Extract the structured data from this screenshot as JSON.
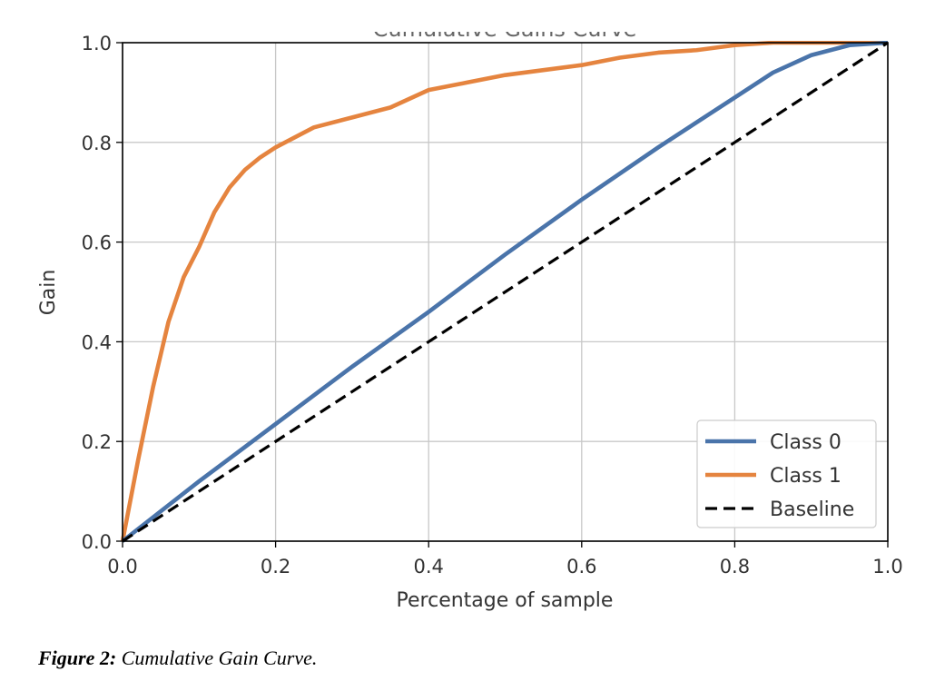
{
  "chart_data": {
    "type": "line",
    "title": "Cumulative Gains Curve",
    "xlabel": "Percentage of sample",
    "ylabel": "Gain",
    "xlim": [
      0.0,
      1.0
    ],
    "ylim": [
      0.0,
      1.0
    ],
    "xticks": [
      "0.0",
      "0.2",
      "0.4",
      "0.6",
      "0.8",
      "1.0"
    ],
    "yticks": [
      "0.0",
      "0.2",
      "0.4",
      "0.6",
      "0.8",
      "1.0"
    ],
    "grid": true,
    "legend_position": "lower-right",
    "series": [
      {
        "name": "Class 0",
        "color": "#4a74aa",
        "style": "solid",
        "x": [
          0.0,
          0.1,
          0.2,
          0.3,
          0.4,
          0.5,
          0.6,
          0.7,
          0.8,
          0.85,
          0.9,
          0.95,
          1.0
        ],
        "y": [
          0.0,
          0.12,
          0.235,
          0.35,
          0.46,
          0.575,
          0.685,
          0.79,
          0.89,
          0.94,
          0.975,
          0.995,
          1.0
        ]
      },
      {
        "name": "Class 1",
        "color": "#e5843f",
        "style": "solid",
        "x": [
          0.0,
          0.02,
          0.04,
          0.06,
          0.08,
          0.1,
          0.12,
          0.14,
          0.16,
          0.18,
          0.2,
          0.25,
          0.3,
          0.35,
          0.4,
          0.45,
          0.5,
          0.55,
          0.6,
          0.65,
          0.7,
          0.75,
          0.8,
          0.85,
          0.9,
          0.95,
          1.0
        ],
        "y": [
          0.0,
          0.16,
          0.31,
          0.44,
          0.53,
          0.59,
          0.66,
          0.71,
          0.745,
          0.77,
          0.79,
          0.83,
          0.85,
          0.87,
          0.905,
          0.92,
          0.935,
          0.945,
          0.955,
          0.97,
          0.98,
          0.985,
          0.995,
          1.0,
          1.0,
          1.0,
          1.0
        ]
      },
      {
        "name": "Baseline",
        "color": "#000000",
        "style": "dashed",
        "x": [
          0.0,
          1.0
        ],
        "y": [
          0.0,
          1.0
        ]
      }
    ]
  },
  "caption": {
    "label": "Figure 2:",
    "text": " Cumulative Gain Curve."
  }
}
